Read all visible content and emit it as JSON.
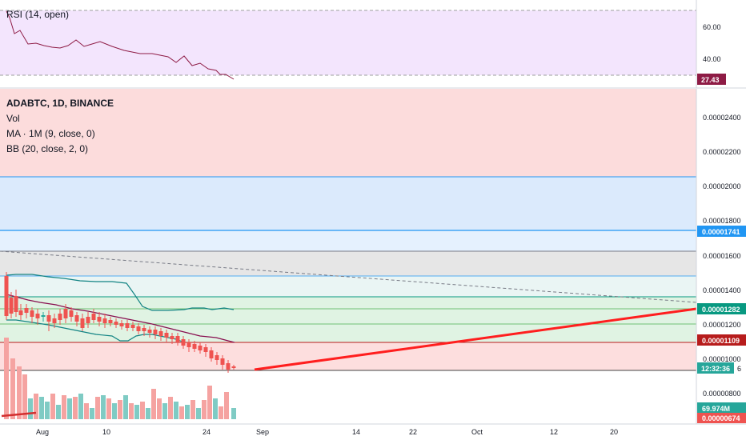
{
  "rsi_pane": {
    "legend": "RSI (14, open)",
    "ticks": [
      "60.00",
      "40.00"
    ],
    "current_label": "27.43",
    "colors": {
      "band": "#f3e5fd",
      "line": "#8e1b45",
      "tag": "#8e1b45"
    }
  },
  "main_pane": {
    "legend": [
      "ADABTC, 1D, BINANCE",
      "Vol",
      "MA · 1M (9, close, 0)",
      "BB (20, close, 2, 0)"
    ],
    "price_ticks": [
      "0.00002400",
      "0.00002200",
      "0.00002000",
      "0.00001800",
      "0.00001600",
      "0.00001400",
      "0.00001200",
      "0.00001000",
      "0.00000800"
    ],
    "tags": [
      {
        "text": "0.00001741",
        "color": "#2196f3"
      },
      {
        "text": "0.00001282",
        "color": "#089981"
      },
      {
        "text": "0.00001109",
        "color": "#b71c1c"
      },
      {
        "text": "12:32:36",
        "color": "#26a69a"
      },
      {
        "text": "69.974M",
        "color": "#26a69a"
      },
      {
        "text": "0.00000674",
        "color": "#ef5350"
      }
    ],
    "tag_suffix": "6",
    "colors": {
      "up": "#26a69a",
      "down": "#ef5350",
      "vol_up": "#7fcbc4",
      "vol_down": "#f5a3a1",
      "ma": "#880e4f",
      "bb": "#138484",
      "trend": "#ff1e1e"
    }
  },
  "time_axis": [
    "Aug",
    "10",
    "24",
    "Sep",
    "14",
    "22",
    "Oct",
    "12",
    "20"
  ]
}
